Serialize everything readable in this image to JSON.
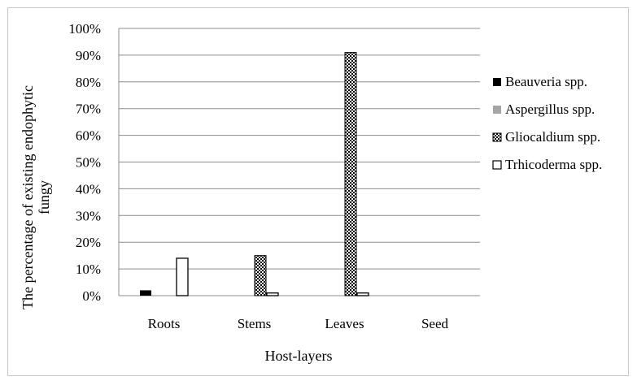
{
  "chart_data": {
    "type": "bar",
    "categories": [
      "Roots",
      "Stems",
      "Leaves",
      "Seed"
    ],
    "series": [
      {
        "name": "Beauveria spp.",
        "values": [
          2,
          0,
          0,
          0
        ],
        "color": "#000000",
        "pattern": "solid"
      },
      {
        "name": "Aspergillus spp.",
        "values": [
          0,
          0,
          0,
          0
        ],
        "color": "#a6a6a6",
        "pattern": "solid"
      },
      {
        "name": "Gliocaldium spp.",
        "values": [
          0,
          15,
          91,
          0
        ],
        "color": "#000000",
        "pattern": "checker"
      },
      {
        "name": "Trhicoderma spp.",
        "values": [
          14,
          1,
          1,
          0
        ],
        "color": "#ffffff",
        "pattern": "outline"
      }
    ],
    "yticks": [
      "0%",
      "10%",
      "20%",
      "30%",
      "40%",
      "50%",
      "60%",
      "70%",
      "80%",
      "90%",
      "100%"
    ],
    "ylim": [
      0,
      100
    ],
    "xlabel": "Host-layers",
    "ylabel_line1": "The percentage of existing endophytic",
    "ylabel_line2": "fungy",
    "grid": true,
    "legend_position": "right"
  }
}
